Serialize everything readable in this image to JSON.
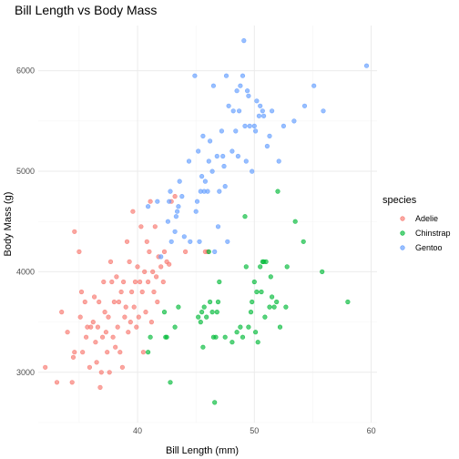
{
  "chart_data": {
    "type": "scatter",
    "title": "Bill Length vs Body Mass",
    "xlabel": "Bill Length (mm)",
    "ylabel": "Body Mass (g)",
    "xlim": [
      31.5,
      60.5
    ],
    "ylim": [
      2500,
      6450
    ],
    "x_ticks": [
      40,
      50,
      60
    ],
    "y_ticks": [
      3000,
      4000,
      5000,
      6000
    ],
    "grid": true,
    "legend_title": "species",
    "legend_position": "right",
    "series": [
      {
        "name": "Adelie",
        "color": "#F8766D",
        "points": [
          [
            32.1,
            3050
          ],
          [
            33.1,
            2900
          ],
          [
            33.5,
            3600
          ],
          [
            34.0,
            3400
          ],
          [
            34.4,
            2900
          ],
          [
            34.5,
            3150
          ],
          [
            34.6,
            4400
          ],
          [
            34.6,
            3200
          ],
          [
            35.0,
            4200
          ],
          [
            35.1,
            3550
          ],
          [
            35.2,
            3800
          ],
          [
            35.3,
            3200
          ],
          [
            35.5,
            3700
          ],
          [
            35.6,
            3350
          ],
          [
            35.7,
            3450
          ],
          [
            35.9,
            3050
          ],
          [
            36.0,
            3450
          ],
          [
            36.2,
            3500
          ],
          [
            36.3,
            3750
          ],
          [
            36.4,
            3300
          ],
          [
            36.5,
            3100
          ],
          [
            36.6,
            3450
          ],
          [
            36.7,
            3700
          ],
          [
            36.8,
            2850
          ],
          [
            36.9,
            3000
          ],
          [
            37.0,
            3350
          ],
          [
            37.1,
            3900
          ],
          [
            37.2,
            3600
          ],
          [
            37.3,
            3400
          ],
          [
            37.4,
            3200
          ],
          [
            37.5,
            3550
          ],
          [
            37.6,
            3000
          ],
          [
            37.7,
            4100
          ],
          [
            37.8,
            3900
          ],
          [
            37.9,
            3350
          ],
          [
            38.0,
            3700
          ],
          [
            38.1,
            3250
          ],
          [
            38.2,
            3950
          ],
          [
            38.3,
            3450
          ],
          [
            38.4,
            3700
          ],
          [
            38.5,
            3200
          ],
          [
            38.6,
            3800
          ],
          [
            38.7,
            3050
          ],
          [
            38.8,
            3900
          ],
          [
            38.9,
            3550
          ],
          [
            39.0,
            3650
          ],
          [
            39.1,
            4300
          ],
          [
            39.2,
            3400
          ],
          [
            39.3,
            4100
          ],
          [
            39.4,
            3500
          ],
          [
            39.5,
            3800
          ],
          [
            39.6,
            4600
          ],
          [
            39.7,
            3650
          ],
          [
            39.8,
            3900
          ],
          [
            39.9,
            3450
          ],
          [
            40.0,
            4050
          ],
          [
            40.1,
            3550
          ],
          [
            40.2,
            3900
          ],
          [
            40.3,
            4450
          ],
          [
            40.4,
            3800
          ],
          [
            40.5,
            3200
          ],
          [
            40.6,
            4000
          ],
          [
            40.7,
            3600
          ],
          [
            40.8,
            4300
          ],
          [
            40.9,
            3900
          ],
          [
            41.0,
            4200
          ],
          [
            41.1,
            4700
          ],
          [
            41.2,
            3500
          ],
          [
            41.3,
            4000
          ],
          [
            41.4,
            3800
          ],
          [
            41.5,
            4450
          ],
          [
            41.6,
            3950
          ],
          [
            41.7,
            3700
          ],
          [
            41.8,
            4150
          ],
          [
            42.0,
            4050
          ],
          [
            42.2,
            3900
          ],
          [
            42.3,
            4200
          ],
          [
            42.5,
            4100
          ],
          [
            42.7,
            4075
          ],
          [
            42.9,
            4700
          ],
          [
            43.2,
            4750
          ],
          [
            44.1,
            4200
          ],
          [
            45.8,
            4200
          ],
          [
            46.0,
            4200
          ]
        ]
      },
      {
        "name": "Chinstrap",
        "color": "#00BA38",
        "points": [
          [
            40.9,
            3200
          ],
          [
            41.1,
            3350
          ],
          [
            42.3,
            3600
          ],
          [
            42.4,
            3350
          ],
          [
            42.5,
            3350
          ],
          [
            42.8,
            2900
          ],
          [
            43.2,
            3450
          ],
          [
            43.5,
            3650
          ],
          [
            45.2,
            3550
          ],
          [
            45.4,
            3500
          ],
          [
            45.5,
            3600
          ],
          [
            45.6,
            3250
          ],
          [
            45.7,
            3650
          ],
          [
            45.9,
            3550
          ],
          [
            46.1,
            4200
          ],
          [
            46.2,
            3700
          ],
          [
            46.4,
            3600
          ],
          [
            46.5,
            3350
          ],
          [
            46.6,
            2700
          ],
          [
            46.7,
            3350
          ],
          [
            46.8,
            3600
          ],
          [
            46.9,
            3700
          ],
          [
            47.0,
            3900
          ],
          [
            47.5,
            3350
          ],
          [
            48.1,
            3300
          ],
          [
            48.5,
            3400
          ],
          [
            48.8,
            3450
          ],
          [
            49.0,
            3350
          ],
          [
            49.2,
            4550
          ],
          [
            49.3,
            4050
          ],
          [
            49.5,
            3450
          ],
          [
            49.7,
            3600
          ],
          [
            49.8,
            3700
          ],
          [
            50.0,
            3900
          ],
          [
            50.1,
            3400
          ],
          [
            50.2,
            3800
          ],
          [
            50.3,
            3300
          ],
          [
            50.5,
            4050
          ],
          [
            50.6,
            3800
          ],
          [
            50.7,
            4100
          ],
          [
            50.8,
            4100
          ],
          [
            50.9,
            3550
          ],
          [
            51.0,
            4100
          ],
          [
            51.3,
            3650
          ],
          [
            51.4,
            3950
          ],
          [
            51.5,
            3750
          ],
          [
            51.7,
            3650
          ],
          [
            51.9,
            3700
          ],
          [
            52.0,
            4800
          ],
          [
            52.2,
            3450
          ],
          [
            52.7,
            3650
          ],
          [
            52.8,
            4050
          ],
          [
            53.5,
            4500
          ],
          [
            54.2,
            4300
          ],
          [
            55.8,
            4000
          ],
          [
            58.0,
            3700
          ]
        ]
      },
      {
        "name": "Gentoo",
        "color": "#619CFF",
        "points": [
          [
            40.9,
            4650
          ],
          [
            41.7,
            4700
          ],
          [
            42.0,
            4150
          ],
          [
            42.6,
            4500
          ],
          [
            42.7,
            4700
          ],
          [
            42.8,
            4800
          ],
          [
            42.9,
            4300
          ],
          [
            43.2,
            4400
          ],
          [
            43.3,
            4550
          ],
          [
            43.4,
            4600
          ],
          [
            43.5,
            4650
          ],
          [
            43.6,
            4900
          ],
          [
            43.8,
            4750
          ],
          [
            44.0,
            4350
          ],
          [
            44.4,
            5100
          ],
          [
            44.5,
            4300
          ],
          [
            44.9,
            5950
          ],
          [
            45.0,
            4600
          ],
          [
            45.1,
            4700
          ],
          [
            45.2,
            5200
          ],
          [
            45.3,
            4300
          ],
          [
            45.4,
            4800
          ],
          [
            45.5,
            4950
          ],
          [
            45.6,
            5350
          ],
          [
            45.7,
            4800
          ],
          [
            45.8,
            4900
          ],
          [
            46.0,
            4800
          ],
          [
            46.1,
            5100
          ],
          [
            46.2,
            5300
          ],
          [
            46.4,
            5000
          ],
          [
            46.5,
            5850
          ],
          [
            46.6,
            4200
          ],
          [
            46.8,
            5150
          ],
          [
            46.9,
            4450
          ],
          [
            47.0,
            4800
          ],
          [
            47.2,
            5400
          ],
          [
            47.3,
            5150
          ],
          [
            47.4,
            5050
          ],
          [
            47.5,
            4850
          ],
          [
            47.6,
            5950
          ],
          [
            47.7,
            4300
          ],
          [
            47.8,
            5650
          ],
          [
            48.1,
            5200
          ],
          [
            48.2,
            5600
          ],
          [
            48.4,
            5400
          ],
          [
            48.5,
            5800
          ],
          [
            48.6,
            5150
          ],
          [
            48.7,
            5600
          ],
          [
            48.8,
            5850
          ],
          [
            49.0,
            5950
          ],
          [
            49.1,
            6300
          ],
          [
            49.2,
            5450
          ],
          [
            49.3,
            5100
          ],
          [
            49.4,
            5800
          ],
          [
            49.5,
            5750
          ],
          [
            49.6,
            5450
          ],
          [
            49.8,
            5000
          ],
          [
            50.0,
            5450
          ],
          [
            50.1,
            5400
          ],
          [
            50.2,
            5700
          ],
          [
            50.4,
            5550
          ],
          [
            50.5,
            5650
          ],
          [
            50.7,
            5600
          ],
          [
            50.8,
            5550
          ],
          [
            51.1,
            5250
          ],
          [
            51.3,
            5350
          ],
          [
            51.5,
            5600
          ],
          [
            52.1,
            5100
          ],
          [
            52.5,
            5450
          ],
          [
            53.4,
            5500
          ],
          [
            54.3,
            5650
          ],
          [
            55.1,
            5850
          ],
          [
            55.9,
            5600
          ],
          [
            59.6,
            6050
          ]
        ]
      }
    ]
  }
}
